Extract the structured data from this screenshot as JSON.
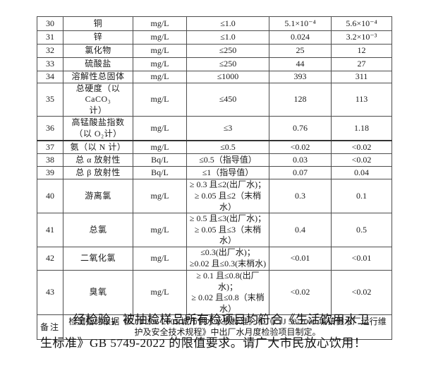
{
  "table": {
    "rows": [
      {
        "no": "30",
        "name": "铜",
        "unit": "mg/L",
        "limit": "≤1.0",
        "factory_value": "5.1×10⁻⁴",
        "tap_value": "5.6×10⁻⁴"
      },
      {
        "no": "31",
        "name": "锌",
        "unit": "mg/L",
        "limit": "≤1.0",
        "factory_value": "0.024",
        "tap_value": "3.2×10⁻³"
      },
      {
        "no": "32",
        "name": "氯化物",
        "unit": "mg/L",
        "limit": "≤250",
        "factory_value": "25",
        "tap_value": "12"
      },
      {
        "no": "33",
        "name": "硫酸盐",
        "unit": "mg/L",
        "limit": "≤250",
        "factory_value": "44",
        "tap_value": "27"
      },
      {
        "no": "34",
        "name": "溶解性总固体",
        "unit": "mg/L",
        "limit": "≤1000",
        "factory_value": "393",
        "tap_value": "311"
      },
      {
        "no": "35",
        "name": "总硬度（以 CaCO₃\n计）",
        "unit": "mg/L",
        "limit": "≤450",
        "factory_value": "128",
        "tap_value": "113"
      },
      {
        "no": "36",
        "name": "高锰酸盐指数\n（以 O₂计）",
        "unit": "mg/L",
        "limit": "≤3",
        "factory_value": "0.76",
        "tap_value": "1.18"
      },
      {
        "no": "37",
        "name": "氨（以 N 计）",
        "unit": "mg/L",
        "limit": "≤0.5",
        "factory_value": "<0.02",
        "tap_value": "<0.02"
      },
      {
        "no": "38",
        "name": "总 α 放射性",
        "unit": "Bq/L",
        "limit": "≤0.5（指导值）",
        "factory_value": "0.03",
        "tap_value": "<0.02"
      },
      {
        "no": "39",
        "name": "总 β 放射性",
        "unit": "Bq/L",
        "limit": "≤1（指导值）",
        "factory_value": "0.07",
        "tap_value": "0.04"
      },
      {
        "no": "40",
        "name": "游离氯",
        "unit": "mg/L",
        "limit": "≥ 0.3 且≤2(出厂水)；\n≥ 0.05 且≤2（末梢水）",
        "factory_value": "0.3",
        "tap_value": "0.1"
      },
      {
        "no": "41",
        "name": "总氯",
        "unit": "mg/L",
        "limit": "≥ 0.5 且≤3(出厂水)；\n≥ 0.05 且≤3（末梢水）",
        "factory_value": "0.4",
        "tap_value": "0.5"
      },
      {
        "no": "42",
        "name": "二氧化氯",
        "unit": "mg/L",
        "limit": "≤0.3(出厂水)；\n≥0.02 且≤0.3(末梢水)",
        "factory_value": "<0.01",
        "tap_value": "<0.01"
      },
      {
        "no": "43",
        "name": "臭氧",
        "unit": "mg/L",
        "limit": "≥ 0.1 且≤0.8(出厂水)；\n≥ 0.02 且≤0.8（末梢水）",
        "factory_value": "<0.02",
        "tap_value": "<0.02"
      }
    ],
    "remarks_label": "备注",
    "remarks_text": "检测指标根据《CJ/T 206-2005 城市供水水质标准》和《CJJ 58-2009 城镇供水厂运行维护及安全技术规程》中出厂水月度检验项目制定。"
  },
  "footer": {
    "lines": [
      "经检验，被抽检样品所有检项目均符合《生活饮用水卫",
      "生标准》GB 5749-2022 的限值要求。请广大市民放心饮用！"
    ]
  },
  "colors": {
    "page_background": "#ffffff",
    "grid_border": "#4d4d4d",
    "text": "#1a1a1a"
  }
}
